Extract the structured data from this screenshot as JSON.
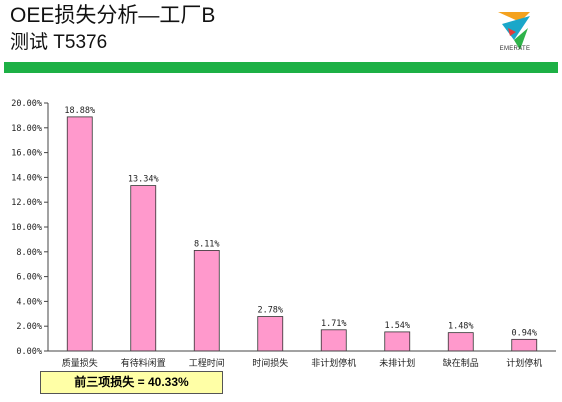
{
  "header": {
    "title": "OEE损失分析—工厂B",
    "subtitle": "测试 T5376",
    "logo_text": "EMERATE"
  },
  "colors": {
    "accent_bar": "#1db045",
    "bar_fill": "#ff99cc",
    "bar_stroke": "#333333",
    "footer_fill": "#ffffa6"
  },
  "chart_data": {
    "type": "bar",
    "categories": [
      "质量损失",
      "有待料闲置",
      "工程时间",
      "时间损失",
      "非计划停机",
      "未排计划",
      "缺在制品",
      "计划停机"
    ],
    "values": [
      18.88,
      13.34,
      8.11,
      2.78,
      1.71,
      1.54,
      1.48,
      0.94
    ],
    "data_labels": [
      "18.88%",
      "13.34%",
      "8.11%",
      "2.78%",
      "1.71%",
      "1.54%",
      "1.48%",
      "0.94%"
    ],
    "y_ticks": [
      "0.00%",
      "2.00%",
      "4.00%",
      "6.00%",
      "8.00%",
      "10.00%",
      "12.00%",
      "14.00%",
      "16.00%",
      "18.00%",
      "20.00%"
    ],
    "ylim": [
      0,
      20
    ],
    "grid": false,
    "title": "",
    "xlabel": "",
    "ylabel": ""
  },
  "footer": {
    "summary": "前三项损失 = 40.33%"
  }
}
